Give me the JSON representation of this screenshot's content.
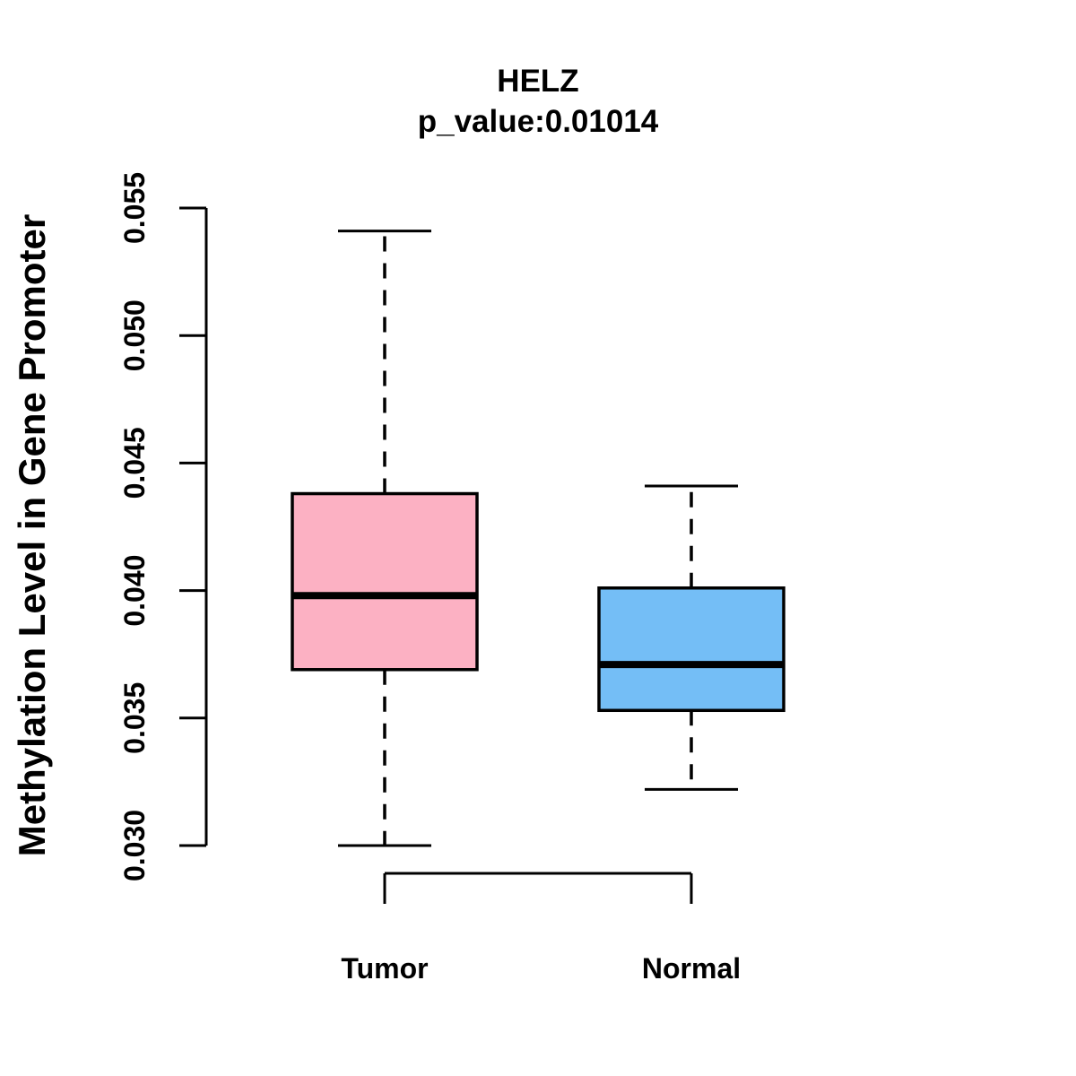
{
  "chart_data": {
    "type": "boxplot",
    "title": "HELZ",
    "subtitle": "p_value:0.01014",
    "ylabel": "Methylation Level in Gene Promoter",
    "xlabel": "",
    "ylim": [
      0.03,
      0.055
    ],
    "ytick_step": 0.005,
    "yticks": [
      "0.030",
      "0.035",
      "0.040",
      "0.045",
      "0.050",
      "0.055"
    ],
    "grid": "off",
    "legend": "none",
    "groups": [
      {
        "label": "Tumor",
        "color": "#FCB1C3",
        "whisker_low": 0.03,
        "q1": 0.0369,
        "median": 0.0398,
        "q3": 0.0438,
        "whisker_high": 0.0541
      },
      {
        "label": "Normal",
        "color": "#74BEF6",
        "whisker_low": 0.0322,
        "q1": 0.0353,
        "median": 0.0371,
        "q3": 0.0401,
        "whisker_high": 0.0441
      }
    ],
    "colors": {
      "box_border": "#000000",
      "axis": "#000000",
      "text": "#000000",
      "background": "#ffffff"
    }
  }
}
